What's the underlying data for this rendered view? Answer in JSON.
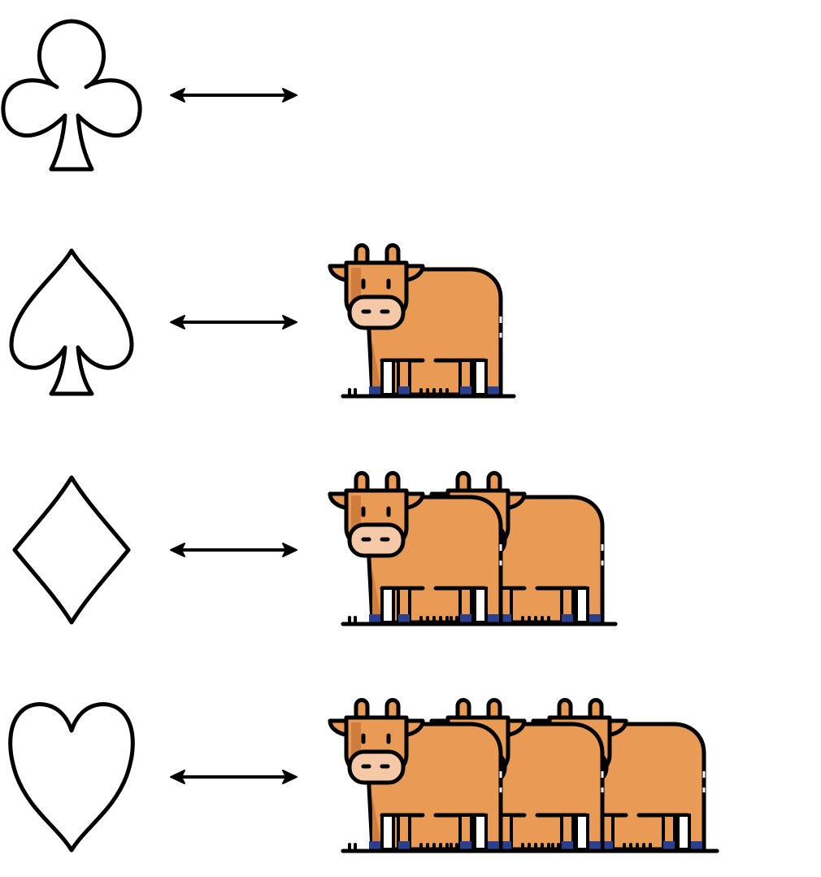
{
  "rows": [
    {
      "suit": "club",
      "icon": "club-suit-icon",
      "cow_count": 0
    },
    {
      "suit": "spade",
      "icon": "spade-suit-icon",
      "cow_count": 1
    },
    {
      "suit": "diamond",
      "icon": "diamond-suit-icon",
      "cow_count": 2
    },
    {
      "suit": "heart",
      "icon": "heart-suit-icon",
      "cow_count": 3
    }
  ],
  "colors": {
    "outline": "#000000",
    "cow_body": "#E99B55",
    "cow_shade": "#CF7C3C",
    "cow_muzzle": "#F5C9A7",
    "hoof": "#2B3F8C",
    "leg_light": "#FFFFFF"
  }
}
